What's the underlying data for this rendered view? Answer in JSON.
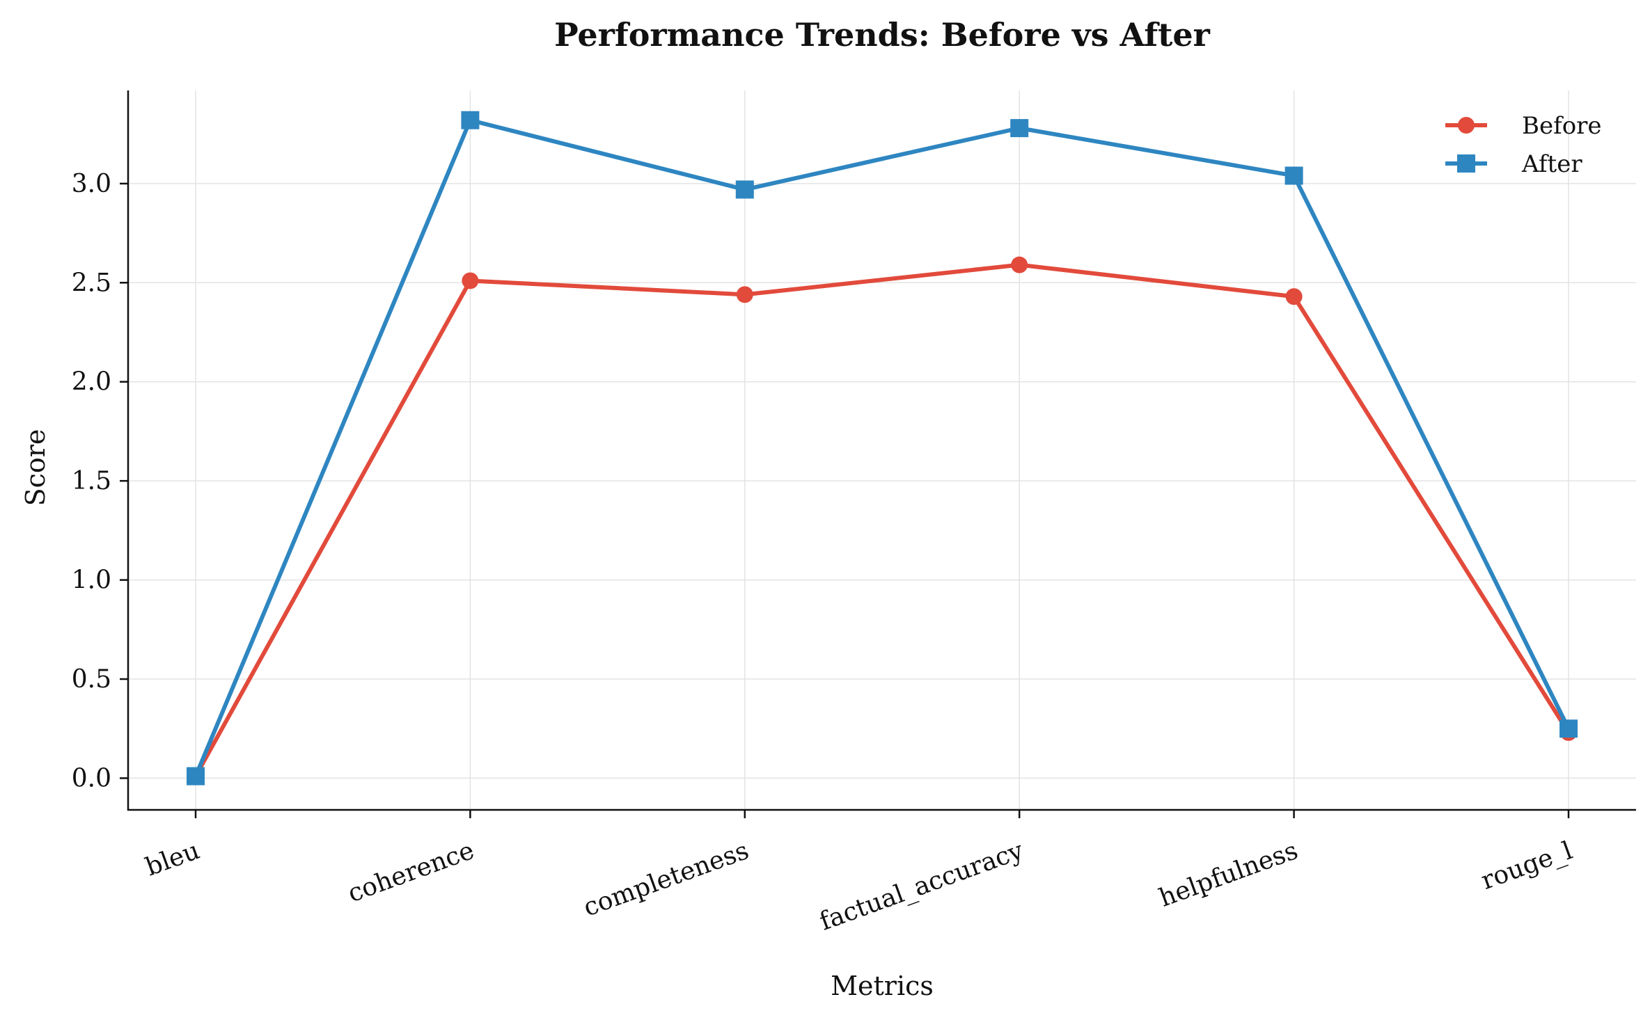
{
  "chart_data": {
    "type": "line",
    "title": "Performance Trends: Before vs After",
    "xlabel": "Metrics",
    "ylabel": "Score",
    "categories": [
      "bleu",
      "coherence",
      "completeness",
      "factual_accuracy",
      "helpfulness",
      "rouge_l"
    ],
    "ylim": [
      -0.16,
      3.47
    ],
    "yticks": [
      "0.0",
      "0.5",
      "1.0",
      "1.5",
      "2.0",
      "2.5",
      "3.0"
    ],
    "grid": true,
    "legend_position": "top-right",
    "series": [
      {
        "name": "Before",
        "marker": "circle",
        "color": "#e24a3b",
        "values": [
          0.01,
          2.51,
          2.44,
          2.59,
          2.43,
          0.23
        ]
      },
      {
        "name": "After",
        "marker": "square",
        "color": "#2e86c1",
        "values": [
          0.01,
          3.32,
          2.97,
          3.28,
          3.04,
          0.25
        ]
      }
    ]
  }
}
